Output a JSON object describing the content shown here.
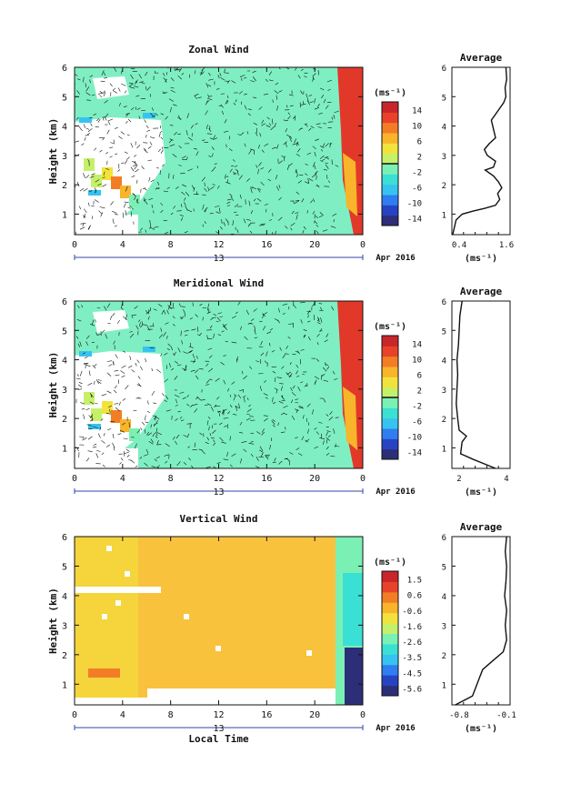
{
  "colors": {
    "palette": [
      "#2c2e78",
      "#2743c4",
      "#2f7df0",
      "#36c3f0",
      "#39e0d3",
      "#7bf0b4",
      "#c5f06a",
      "#f2e33c",
      "#f8b42a",
      "#f37d25",
      "#e8432a",
      "#c8262a"
    ],
    "zonal_background": "#7fefc3",
    "vertical_background": "#f8c23d",
    "edge_red": "#e2382a",
    "axis": "#111111"
  },
  "chart_data": [
    {
      "type": "heatmap",
      "title": "Zonal Wind",
      "ylabel": "Height (km)",
      "ylim": [
        0.3,
        6
      ],
      "yticks": [
        "1",
        "2",
        "3",
        "4",
        "5",
        "6"
      ],
      "xticks": [
        "0",
        "4",
        "8",
        "12",
        "16",
        "20",
        "0"
      ],
      "date_label": "13",
      "month_label": "Apr 2016",
      "colorbar_unit": "(ms⁻¹)",
      "colorbar_ticks": [
        "14",
        "10",
        "6",
        "2",
        "-2",
        "-6",
        "-10",
        "-14"
      ],
      "profile": {
        "title": "Average",
        "xlabel": "(ms⁻¹)",
        "xticks": [
          "0.4",
          "1.6"
        ],
        "xlim": [
          0.2,
          1.6
        ],
        "ylim": [
          0.3,
          6
        ],
        "points": [
          [
            0.22,
            0.3
          ],
          [
            0.3,
            0.8
          ],
          [
            0.45,
            1.0
          ],
          [
            0.7,
            1.1
          ],
          [
            1.0,
            1.2
          ],
          [
            1.25,
            1.3
          ],
          [
            1.35,
            1.5
          ],
          [
            1.3,
            1.7
          ],
          [
            1.4,
            1.9
          ],
          [
            1.32,
            2.1
          ],
          [
            1.2,
            2.3
          ],
          [
            1.0,
            2.5
          ],
          [
            1.2,
            2.6
          ],
          [
            1.25,
            2.8
          ],
          [
            1.05,
            3.0
          ],
          [
            0.98,
            3.2
          ],
          [
            1.1,
            3.4
          ],
          [
            1.25,
            3.6
          ],
          [
            1.2,
            3.9
          ],
          [
            1.15,
            4.2
          ],
          [
            1.3,
            4.5
          ],
          [
            1.45,
            4.8
          ],
          [
            1.5,
            5.0
          ],
          [
            1.48,
            5.3
          ],
          [
            1.52,
            5.6
          ],
          [
            1.5,
            6.0
          ]
        ]
      }
    },
    {
      "type": "heatmap",
      "title": "Meridional Wind",
      "ylabel": "Height (km)",
      "ylim": [
        0.3,
        6
      ],
      "yticks": [
        "1",
        "2",
        "3",
        "4",
        "5",
        "6"
      ],
      "xticks": [
        "0",
        "4",
        "8",
        "12",
        "16",
        "20",
        "0"
      ],
      "date_label": "13",
      "month_label": "Apr 2016",
      "colorbar_unit": "(ms⁻¹)",
      "colorbar_ticks": [
        "14",
        "10",
        "6",
        "2",
        "-2",
        "-6",
        "-10",
        "-14"
      ],
      "profile": {
        "title": "Average",
        "xlabel": "(ms⁻¹)",
        "xticks": [
          "2",
          "4"
        ],
        "xlim": [
          0,
          4
        ],
        "ylim": [
          0.3,
          6
        ],
        "points": [
          [
            3.0,
            0.3
          ],
          [
            1.5,
            0.6
          ],
          [
            0.6,
            0.8
          ],
          [
            0.7,
            1.2
          ],
          [
            1.0,
            1.4
          ],
          [
            0.5,
            1.6
          ],
          [
            0.4,
            2.0
          ],
          [
            0.3,
            2.5
          ],
          [
            0.35,
            3.0
          ],
          [
            0.4,
            3.5
          ],
          [
            0.35,
            4.0
          ],
          [
            0.45,
            4.5
          ],
          [
            0.5,
            5.0
          ],
          [
            0.55,
            5.5
          ],
          [
            0.7,
            6.0
          ]
        ]
      }
    },
    {
      "type": "heatmap",
      "title": "Vertical Wind",
      "ylabel": "Height (km)",
      "xlabel": "Local Time",
      "ylim": [
        0.3,
        6
      ],
      "yticks": [
        "1",
        "2",
        "3",
        "4",
        "5",
        "6"
      ],
      "xticks": [
        "0",
        "4",
        "8",
        "12",
        "16",
        "20",
        "0"
      ],
      "date_label": "13",
      "month_label": "Apr 2016",
      "colorbar_unit": "(ms⁻¹)",
      "colorbar_ticks": [
        "1.5",
        "0.6",
        "-0.6",
        "-1.6",
        "-2.6",
        "-3.5",
        "-4.5",
        "-5.6"
      ],
      "profile": {
        "title": "Average",
        "xlabel": "(ms⁻¹)",
        "xticks": [
          "-0.8",
          "-0.1"
        ],
        "xlim": [
          -0.9,
          -0.05
        ],
        "ylim": [
          0.3,
          6
        ],
        "points": [
          [
            -0.85,
            0.3
          ],
          [
            -0.6,
            0.6
          ],
          [
            -0.55,
            0.9
          ],
          [
            -0.5,
            1.2
          ],
          [
            -0.45,
            1.5
          ],
          [
            -0.3,
            1.8
          ],
          [
            -0.15,
            2.1
          ],
          [
            -0.1,
            2.5
          ],
          [
            -0.12,
            3.0
          ],
          [
            -0.1,
            3.5
          ],
          [
            -0.13,
            4.0
          ],
          [
            -0.11,
            4.5
          ],
          [
            -0.1,
            5.0
          ],
          [
            -0.12,
            5.5
          ],
          [
            -0.1,
            6.0
          ]
        ]
      }
    }
  ]
}
